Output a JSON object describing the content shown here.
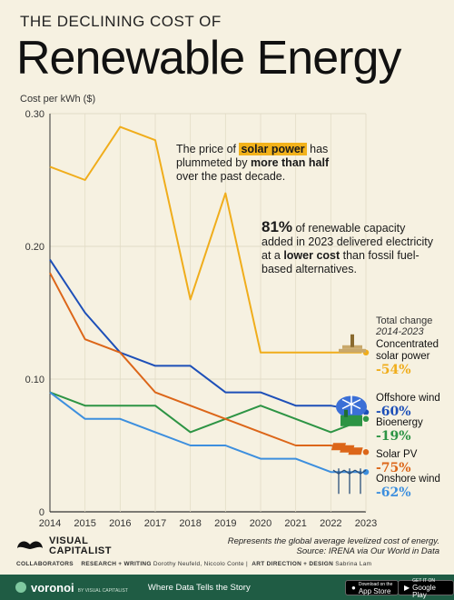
{
  "header": {
    "kicker": "THE DECLINING COST OF",
    "headline": "Renewable Energy"
  },
  "annotations": {
    "solar_pre": "The price of ",
    "solar_hl": "solar power",
    "solar_mid": " has plummeted by ",
    "solar_bold": "more than half",
    "solar_post": " over the past decade.",
    "cap_big": "81%",
    "cap_mid": " of renewable capacity added in 2023 delivered electricity at a ",
    "cap_bold": "lower cost",
    "cap_post": " than fossil fuel-based alternatives."
  },
  "total_change": {
    "title": "Total change",
    "period": "2014-2023"
  },
  "colors": {
    "background": "#f6f1e1",
    "concentrated_solar": "#f0ad1b",
    "offshore_wind": "#1d4fb8",
    "bioenergy": "#2d9444",
    "solar_pv": "#dc6619",
    "onshore_wind": "#3d8fde",
    "voronoi_bar": "#1f5c44"
  },
  "chart_data": {
    "type": "line",
    "title": "Renewable Energy",
    "ylabel": "Cost per kWh ($)",
    "xlabel": "",
    "x": [
      2014,
      2015,
      2016,
      2017,
      2018,
      2019,
      2020,
      2021,
      2022,
      2023
    ],
    "ylim": [
      0,
      0.3
    ],
    "yticks": [
      "0",
      "0.10",
      "0.20",
      "0.30"
    ],
    "series": [
      {
        "name": "Concentrated solar power",
        "change": "-54%",
        "color": "#f0ad1b",
        "icon": "solar-tower-icon",
        "values": [
          0.26,
          0.25,
          0.29,
          0.28,
          0.16,
          0.24,
          0.12,
          0.12,
          0.12,
          0.12
        ]
      },
      {
        "name": "Offshore wind",
        "change": "-60%",
        "color": "#1d4fb8",
        "icon": "offshore-turbine-icon",
        "values": [
          0.19,
          0.15,
          0.12,
          0.11,
          0.11,
          0.09,
          0.09,
          0.08,
          0.08,
          0.075
        ]
      },
      {
        "name": "Bioenergy",
        "change": "-19%",
        "color": "#2d9444",
        "icon": "bioenergy-plant-icon",
        "values": [
          0.09,
          0.08,
          0.08,
          0.08,
          0.06,
          0.07,
          0.08,
          0.07,
          0.06,
          0.07
        ]
      },
      {
        "name": "Solar PV",
        "change": "-75%",
        "color": "#dc6619",
        "icon": "solar-panel-icon",
        "values": [
          0.18,
          0.13,
          0.12,
          0.09,
          0.08,
          0.07,
          0.06,
          0.05,
          0.05,
          0.045
        ]
      },
      {
        "name": "Onshore wind",
        "change": "-62%",
        "color": "#3d8fde",
        "icon": "onshore-turbines-icon",
        "values": [
          0.09,
          0.07,
          0.07,
          0.06,
          0.05,
          0.05,
          0.04,
          0.04,
          0.03,
          0.03
        ]
      }
    ]
  },
  "footer": {
    "note": "Represents the global average levelized cost of energy.",
    "source": "Source: IRENA via Our World in Data",
    "logo_line1": "VISUAL",
    "logo_line2": "CAPITALIST",
    "collab_label": "COLLABORATORS",
    "research_label": "RESEARCH + WRITING",
    "research_names": "Dorothy Neufeld, Niccolo Conte",
    "art_label": "ART DIRECTION + DESIGN",
    "art_names": "Sabrina Lam",
    "voronoi": "voronoi",
    "voronoi_sub": "BY VISUAL CAPITALIST",
    "tagline": "Where Data Tells the Story",
    "appstore_small": "Download on the",
    "appstore": "App Store",
    "googleplay_small": "GET IT ON",
    "googleplay": "Google Play"
  }
}
